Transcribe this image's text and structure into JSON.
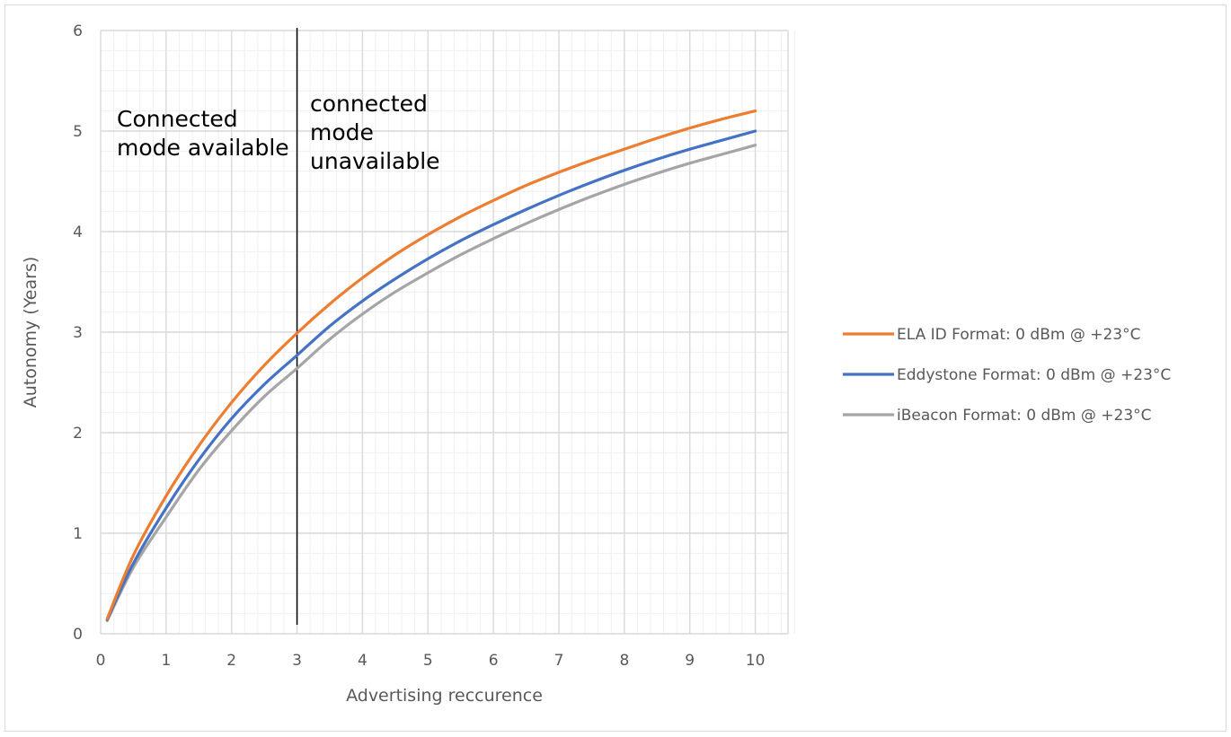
{
  "chart_data": {
    "type": "line",
    "title": "",
    "xlabel": "Advertising reccurence",
    "ylabel": "Autonomy (Years)",
    "xlim": [
      0,
      10.5
    ],
    "ylim": [
      0,
      6
    ],
    "x_ticks": [
      0,
      1,
      2,
      3,
      4,
      5,
      6,
      7,
      8,
      9,
      10
    ],
    "y_ticks": [
      0,
      1,
      2,
      3,
      4,
      5,
      6
    ],
    "grid": true,
    "minor_grid": true,
    "legend_position": "right",
    "x": [
      0.1,
      0.5,
      1,
      1.5,
      2,
      2.5,
      3,
      3.5,
      4,
      4.5,
      5,
      5.5,
      6,
      6.5,
      7,
      7.5,
      8,
      8.5,
      9,
      9.5,
      10
    ],
    "series": [
      {
        "name": "ELA ID Format: 0 dBm @ +23°C",
        "color": "#ed7d31",
        "values": [
          0.15,
          0.78,
          1.37,
          1.87,
          2.3,
          2.67,
          2.99,
          3.28,
          3.54,
          3.77,
          3.97,
          4.15,
          4.31,
          4.46,
          4.59,
          4.71,
          4.82,
          4.93,
          5.03,
          5.12,
          5.2
        ]
      },
      {
        "name": "Eddystone Format: 0 dBm @ +23°C",
        "color": "#4472c4",
        "values": [
          0.14,
          0.7,
          1.25,
          1.73,
          2.14,
          2.48,
          2.77,
          3.06,
          3.31,
          3.53,
          3.73,
          3.91,
          4.07,
          4.22,
          4.36,
          4.49,
          4.61,
          4.72,
          4.82,
          4.91,
          5.0
        ]
      },
      {
        "name": "iBeacon Format: 0 dBm @ +23°C",
        "color": "#a5a5a5",
        "values": [
          0.13,
          0.66,
          1.16,
          1.63,
          2.02,
          2.36,
          2.64,
          2.93,
          3.18,
          3.4,
          3.59,
          3.77,
          3.93,
          4.08,
          4.22,
          4.35,
          4.47,
          4.58,
          4.68,
          4.77,
          4.86
        ]
      }
    ],
    "vline": {
      "x": 3,
      "color": "#000000"
    },
    "annotations": [
      {
        "id": "left",
        "lines": [
          "Connected",
          "mode available"
        ]
      },
      {
        "id": "right",
        "lines": [
          "connected",
          "mode",
          "unavailable"
        ]
      }
    ]
  }
}
